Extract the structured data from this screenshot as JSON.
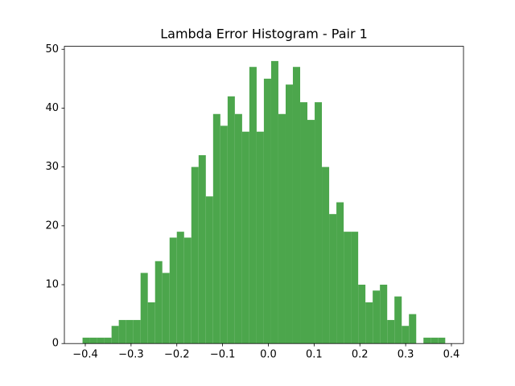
{
  "chart_data": {
    "type": "histogram",
    "title": "Lambda Error Histogram - Pair 1",
    "bins": [
      -0.406,
      -0.3902,
      -0.3743,
      -0.3585,
      -0.3426,
      -0.3268,
      -0.3109,
      -0.2951,
      -0.2792,
      -0.2634,
      -0.2475,
      -0.2317,
      -0.2158,
      -0.2,
      -0.1841,
      -0.1683,
      -0.1524,
      -0.1366,
      -0.1207,
      -0.1049,
      -0.089,
      -0.0732,
      -0.0573,
      -0.0415,
      -0.0256,
      -0.0098,
      0.0061,
      0.0219,
      0.0378,
      0.0536,
      0.0695,
      0.0853,
      0.1012,
      0.117,
      0.1329,
      0.1487,
      0.1646,
      0.1804,
      0.1963,
      0.2121,
      0.228,
      0.2438,
      0.2597,
      0.2755,
      0.2914,
      0.3072,
      0.3231,
      0.3389,
      0.3548,
      0.3706,
      0.3865
    ],
    "values": [
      1,
      1,
      1,
      1,
      3,
      4,
      4,
      4,
      12,
      7,
      14,
      12,
      18,
      19,
      18,
      30,
      32,
      25,
      39,
      37,
      42,
      39,
      36,
      47,
      36,
      45,
      48,
      39,
      44,
      47,
      41,
      38,
      41,
      30,
      22,
      24,
      19,
      19,
      10,
      7,
      9,
      10,
      4,
      8,
      3,
      5,
      0,
      1,
      1,
      1
    ],
    "color": "#4ca64c",
    "xlim": [
      -0.4457,
      0.4264
    ],
    "ylim": [
      0,
      50.5
    ],
    "xticks": [
      {
        "value": -0.4,
        "label": "−0.4"
      },
      {
        "value": -0.3,
        "label": "−0.3"
      },
      {
        "value": -0.2,
        "label": "−0.2"
      },
      {
        "value": -0.1,
        "label": "−0.1"
      },
      {
        "value": 0,
        "label": "0.0"
      },
      0.1,
      0.2,
      0.3,
      0.4
    ],
    "yticks": [
      0,
      10,
      20,
      30,
      40,
      50
    ]
  }
}
